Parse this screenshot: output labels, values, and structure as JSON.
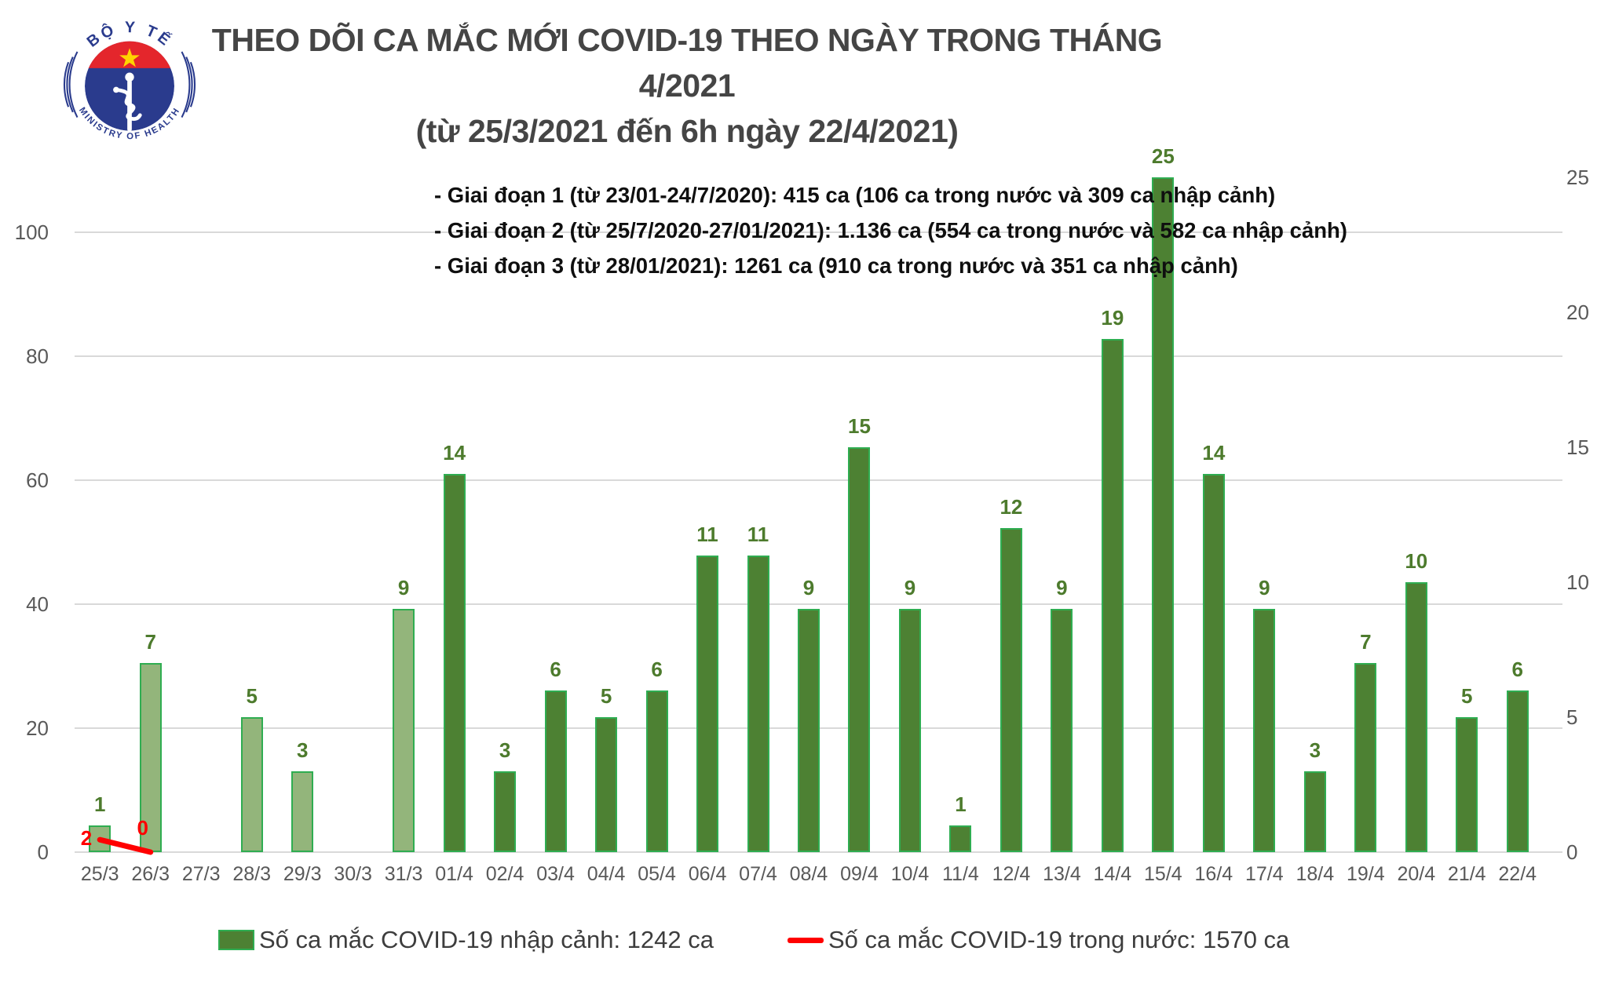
{
  "logo": {
    "top": "BỘ Y TẾ",
    "bottom": "MINISTRY OF HEALTH"
  },
  "title": {
    "line1": "THEO DÕI CA MẮC MỚI COVID-19 THEO NGÀY TRONG THÁNG 4/2021",
    "line2": "(từ 25/3/2021 đến 6h ngày 22/4/2021)"
  },
  "annotations": {
    "line1": "- Giai đoạn 1 (từ 23/01-24/7/2020): 415 ca (106 ca trong nước và 309 ca nhập cảnh)",
    "line2": "- Giai đoạn 2 (từ 25/7/2020-27/01/2021): 1.136 ca (554 ca trong nước và 582 ca nhập cảnh)",
    "line3": "- Giai đoạn 3 (từ 28/01/2021): 1261 ca (910 ca trong nước và 351 ca nhập cảnh)"
  },
  "chart_data": {
    "type": "bar",
    "categories": [
      "25/3",
      "26/3",
      "27/3",
      "28/3",
      "29/3",
      "30/3",
      "31/3",
      "01/4",
      "02/4",
      "03/4",
      "04/4",
      "05/4",
      "06/4",
      "07/4",
      "08/4",
      "09/4",
      "10/4",
      "11/4",
      "12/4",
      "13/4",
      "14/4",
      "15/4",
      "16/4",
      "17/4",
      "18/4",
      "19/4",
      "20/4",
      "21/4",
      "22/4"
    ],
    "series": [
      {
        "name": "Số ca mắc COVID-19 nhập cảnh: 1242 ca",
        "type": "bar",
        "axis": "right",
        "values": [
          1,
          7,
          null,
          5,
          3,
          null,
          9,
          14,
          3,
          6,
          5,
          6,
          11,
          11,
          9,
          15,
          9,
          1,
          12,
          9,
          19,
          25,
          14,
          9,
          3,
          7,
          10,
          5,
          6
        ],
        "light_fill_through_index": 6
      },
      {
        "name": "Số ca mắc COVID-19 trong nước: 1570 ca",
        "type": "line",
        "axis": "left",
        "values": [
          2,
          0,
          null,
          null,
          null,
          null,
          null,
          null,
          null,
          null,
          null,
          null,
          null,
          null,
          null,
          null,
          null,
          null,
          null,
          null,
          null,
          null,
          null,
          null,
          null,
          null,
          null,
          null,
          null
        ]
      }
    ],
    "left_axis": {
      "ticks": [
        0,
        20,
        40,
        60,
        80,
        100
      ],
      "range": [
        0,
        110
      ]
    },
    "right_axis": {
      "ticks": [
        0,
        5,
        10,
        15,
        20,
        25
      ],
      "range": [
        0,
        27.2
      ]
    },
    "grid": true,
    "legend_position": "bottom",
    "colors": {
      "bar_fill": "#4d8133",
      "bar_fill_light": "#93b57b",
      "bar_border": "#2fad51",
      "bar_value_label": "#4d7b2d",
      "line": "#ff0000",
      "gridline": "#d9d9d9",
      "axis_text": "#595959",
      "title_text": "#454545",
      "annotation_text": "#0f0f0f",
      "logo_blue": "#2a3b8d",
      "logo_red": "#e4262c",
      "logo_star": "#ffd400"
    }
  },
  "legend": {
    "items": [
      {
        "label": "Số ca mắc COVID-19 nhập cảnh: 1242 ca",
        "swatch": "bar"
      },
      {
        "label": "Số ca mắc COVID-19 trong nước: 1570 ca",
        "swatch": "line"
      }
    ]
  }
}
